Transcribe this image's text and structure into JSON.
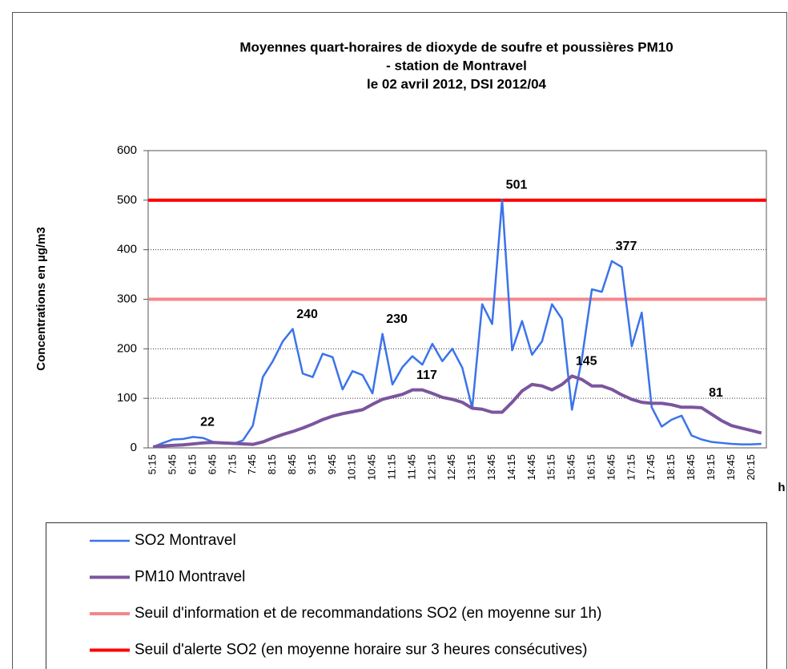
{
  "chart_data": {
    "type": "line",
    "title": [
      "Moyennes quart-horaires de dioxyde de soufre et poussières PM10",
      "- station de Montravel",
      "le 02 avril 2012, DSI 2012/04"
    ],
    "y_label": "Concentrations en µg/m3",
    "x_label": "h",
    "categories": [
      "5:15",
      null,
      "5:45",
      null,
      "6:15",
      null,
      "6:45",
      null,
      "7:15",
      null,
      "7:45",
      null,
      "8:15",
      null,
      "8:45",
      null,
      "9:15",
      null,
      "9:45",
      null,
      "10:15",
      null,
      "10:45",
      null,
      "11:15",
      null,
      "11:45",
      null,
      "12:15",
      null,
      "12:45",
      null,
      "13:15",
      null,
      "13:45",
      null,
      "14:15",
      null,
      "14:45",
      null,
      "15:15",
      null,
      "15:45",
      null,
      "16:15",
      null,
      "16:45",
      null,
      "17:15",
      null,
      "17:45",
      null,
      "18:15",
      null,
      "18:45",
      null,
      "19:15",
      null,
      "19:45",
      null,
      "20:15",
      null
    ],
    "ylim": [
      0,
      600
    ],
    "yticks": [
      0,
      100,
      200,
      300,
      400,
      500,
      600
    ],
    "grid": true,
    "series": [
      {
        "name": "SO2 Montravel",
        "color": "#3b73ea",
        "label_color": "#2e75b6",
        "width": 2.5,
        "values": [
          2,
          10,
          17,
          18,
          22,
          20,
          12,
          10,
          8,
          15,
          45,
          143,
          175,
          215,
          240,
          150,
          143,
          190,
          183,
          118,
          155,
          147,
          110,
          230,
          128,
          163,
          185,
          168,
          210,
          175,
          200,
          162,
          80,
          290,
          250,
          501,
          197,
          256,
          188,
          215,
          290,
          260,
          77,
          180,
          320,
          315,
          377,
          365,
          205,
          273,
          82,
          43,
          57,
          65,
          25,
          17,
          12,
          10,
          8,
          7,
          7,
          8
        ],
        "value_labels": [
          null,
          null,
          null,
          null,
          "22",
          null,
          null,
          null,
          null,
          null,
          null,
          null,
          null,
          null,
          "240",
          null,
          null,
          null,
          null,
          null,
          null,
          null,
          null,
          "230",
          null,
          null,
          null,
          null,
          null,
          null,
          null,
          null,
          null,
          null,
          null,
          "501",
          null,
          null,
          null,
          null,
          null,
          null,
          null,
          null,
          null,
          null,
          "377",
          null,
          null,
          null,
          null,
          null,
          null,
          null,
          null,
          null,
          null,
          null,
          null,
          null,
          null,
          null
        ]
      },
      {
        "name": "PM10 Montravel",
        "color": "#7b559e",
        "label_color": "#7030a0",
        "width": 4,
        "values": [
          2,
          4,
          5,
          6,
          8,
          10,
          11,
          10,
          9,
          8,
          7,
          12,
          20,
          27,
          33,
          40,
          48,
          57,
          64,
          69,
          73,
          77,
          88,
          98,
          103,
          108,
          117,
          117,
          110,
          102,
          98,
          92,
          80,
          78,
          72,
          72,
          92,
          115,
          128,
          125,
          117,
          128,
          145,
          138,
          125,
          125,
          118,
          107,
          98,
          92,
          90,
          90,
          87,
          82,
          82,
          81,
          68,
          55,
          45,
          40,
          35,
          30
        ],
        "value_labels": [
          null,
          null,
          null,
          null,
          null,
          null,
          null,
          null,
          null,
          null,
          null,
          null,
          null,
          null,
          null,
          null,
          null,
          null,
          null,
          null,
          null,
          null,
          null,
          null,
          null,
          null,
          "117",
          null,
          null,
          null,
          null,
          null,
          null,
          null,
          null,
          null,
          null,
          null,
          null,
          null,
          null,
          null,
          "145",
          null,
          null,
          null,
          null,
          null,
          null,
          null,
          null,
          null,
          null,
          null,
          null,
          "81",
          null,
          null,
          null,
          null,
          null,
          null
        ]
      }
    ],
    "reference_lines": [
      {
        "name": "Seuil d'information et de recommandations SO2 (en moyenne sur 1h)",
        "color": "#f4868a",
        "value": 300
      },
      {
        "name": "Seuil d'alerte SO2 (en moyenne horaire sur 3 heures consécutives)",
        "color": "#ff0000",
        "value": 500
      }
    ]
  }
}
